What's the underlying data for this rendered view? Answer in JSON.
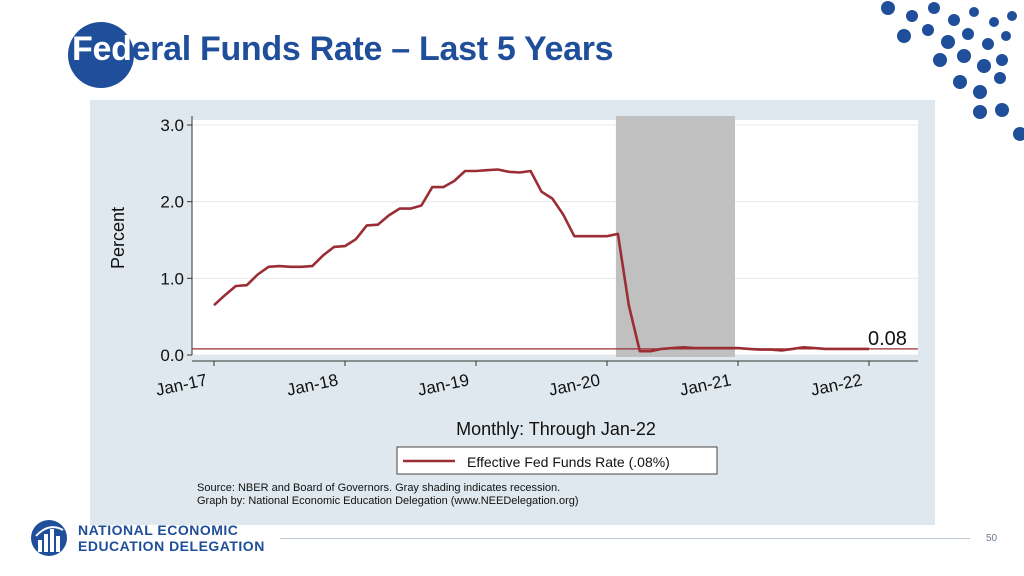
{
  "slide": {
    "title_accent": "Fed",
    "title_rest": "eral Funds Rate – Last 5 Years",
    "page_number": "50"
  },
  "logo": {
    "line1": "NATIONAL ECONOMIC",
    "line2": "EDUCATION DELEGATION"
  },
  "colors": {
    "brand_blue": "#1f4e9a",
    "series_line": "#9b2d35",
    "recession_shading": "#c0c0c0",
    "panel_bg": "#dfe8ee"
  },
  "chart_data": {
    "type": "line",
    "title": "",
    "xlabel": "Monthly: Through Jan-22",
    "ylabel": "Percent",
    "ylim": [
      0,
      3.0
    ],
    "yticks": [
      "0.0",
      "1.0",
      "2.0",
      "3.0"
    ],
    "xticks": [
      "Jan-17",
      "Jan-18",
      "Jan-19",
      "Jan-20",
      "Jan-21",
      "Jan-22"
    ],
    "grid": true,
    "legend_placement": "bottom",
    "end_label": "0.08",
    "recession": {
      "start": "2020-02",
      "end": "2021-01"
    },
    "series": [
      {
        "name": "Effective Fed Funds Rate (.08%)",
        "x": [
          "2017-01",
          "2017-02",
          "2017-03",
          "2017-04",
          "2017-05",
          "2017-06",
          "2017-07",
          "2017-08",
          "2017-09",
          "2017-10",
          "2017-11",
          "2017-12",
          "2018-01",
          "2018-02",
          "2018-03",
          "2018-04",
          "2018-05",
          "2018-06",
          "2018-07",
          "2018-08",
          "2018-09",
          "2018-10",
          "2018-11",
          "2018-12",
          "2019-01",
          "2019-02",
          "2019-03",
          "2019-04",
          "2019-05",
          "2019-06",
          "2019-07",
          "2019-08",
          "2019-09",
          "2019-10",
          "2019-11",
          "2019-12",
          "2020-01",
          "2020-02",
          "2020-03",
          "2020-04",
          "2020-05",
          "2020-06",
          "2020-07",
          "2020-08",
          "2020-09",
          "2020-10",
          "2020-11",
          "2020-12",
          "2021-01",
          "2021-02",
          "2021-03",
          "2021-04",
          "2021-05",
          "2021-06",
          "2021-07",
          "2021-08",
          "2021-09",
          "2021-10",
          "2021-11",
          "2021-12",
          "2022-01"
        ],
        "values": [
          0.65,
          0.78,
          0.9,
          0.91,
          1.05,
          1.15,
          1.16,
          1.15,
          1.15,
          1.16,
          1.3,
          1.41,
          1.42,
          1.51,
          1.69,
          1.7,
          1.82,
          1.91,
          1.91,
          1.95,
          2.19,
          2.19,
          2.27,
          2.4,
          2.4,
          2.41,
          2.42,
          2.39,
          2.38,
          2.4,
          2.13,
          2.04,
          1.83,
          1.55,
          1.55,
          1.55,
          1.55,
          1.58,
          0.65,
          0.05,
          0.05,
          0.08,
          0.09,
          0.1,
          0.09,
          0.09,
          0.09,
          0.09,
          0.09,
          0.08,
          0.07,
          0.07,
          0.06,
          0.08,
          0.1,
          0.09,
          0.08,
          0.08,
          0.08,
          0.08,
          0.08
        ]
      }
    ],
    "reference_line": {
      "value": 0.08
    }
  },
  "source": {
    "line1": "Source: NBER and Board of Governors. Gray shading indicates recession.",
    "line2": "Graph by: National Economic Education Delegation (www.NEEDelegation.org)"
  }
}
